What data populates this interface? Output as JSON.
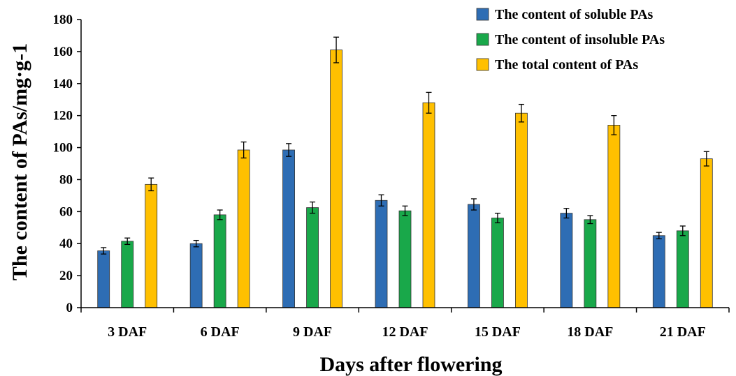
{
  "chart_data": {
    "type": "bar",
    "xlabel": "Days after flowering",
    "ylabel": "The content of PAs/mg·g-1",
    "ylim": [
      0,
      180
    ],
    "yticks": [
      0,
      20,
      40,
      60,
      80,
      100,
      120,
      140,
      160,
      180
    ],
    "grid": false,
    "legend_position": "top-right",
    "categories": [
      "3 DAF",
      "6 DAF",
      "9 DAF",
      "12 DAF",
      "15 DAF",
      "18 DAF",
      "21 DAF"
    ],
    "series": [
      {
        "name": "The content of soluble PAs",
        "color": "#2E6DB4",
        "values": [
          35.5,
          40,
          98.5,
          67,
          64.5,
          59,
          45
        ],
        "errors": [
          2,
          2,
          4,
          3.5,
          3.5,
          3,
          2
        ]
      },
      {
        "name": "The content of insoluble PAs",
        "color": "#19A84A",
        "values": [
          41.5,
          58,
          62.5,
          60.5,
          56,
          55,
          48
        ],
        "errors": [
          2,
          3,
          3.5,
          3,
          3,
          2.5,
          3
        ]
      },
      {
        "name": "The total content of PAs",
        "color": "#FFC000",
        "values": [
          77,
          98.5,
          161,
          128,
          121.5,
          114,
          93
        ],
        "errors": [
          4,
          5,
          8,
          6.5,
          5.5,
          6,
          4.5
        ]
      }
    ]
  }
}
